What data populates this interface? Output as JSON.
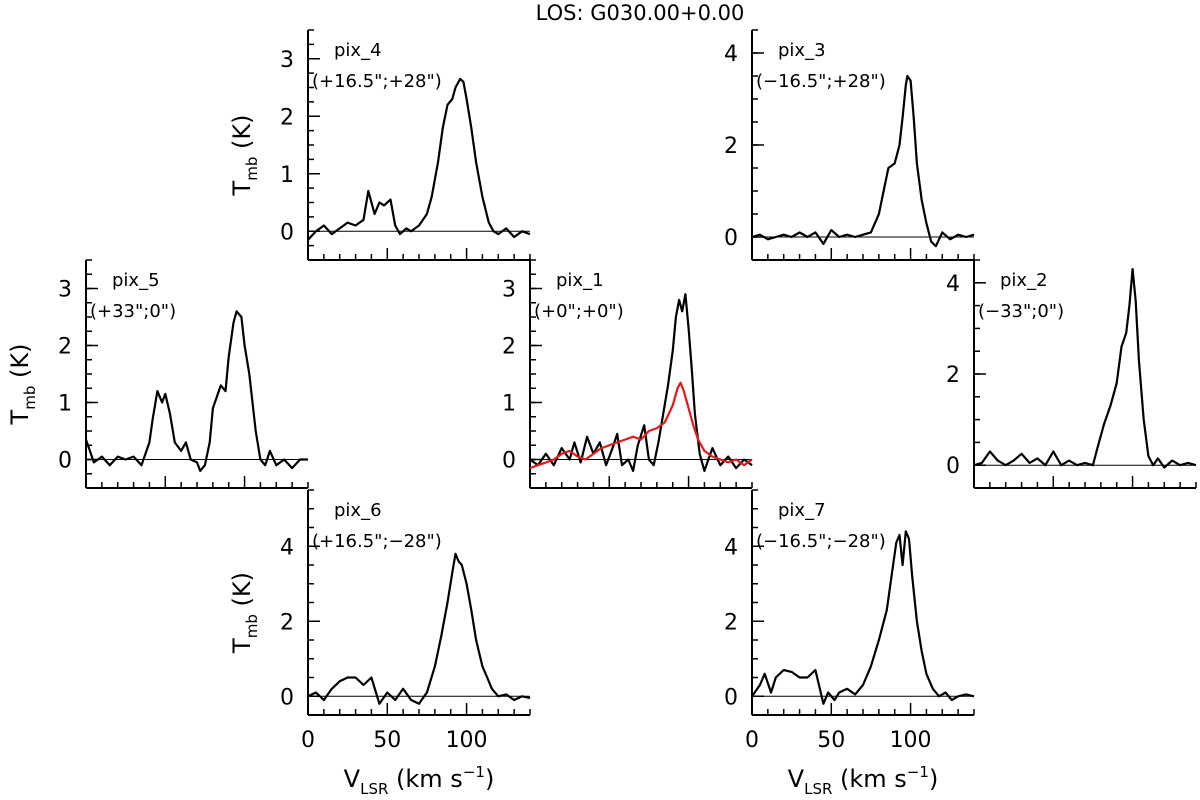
{
  "figure_title": "LOS: G030.00+0.00",
  "axis_text": {
    "x_label_main": "V",
    "x_label_sub": "LSR",
    "x_label_unit": " (km s",
    "x_label_exp": "−1",
    "x_label_close": ")",
    "y_label_main": "T",
    "y_label_sub": "mb",
    "y_label_unit": " (K)"
  },
  "chart_data": [
    {
      "type": "line",
      "panel": "pix_4",
      "label": "pix_4",
      "offset": "(+16.5\";+28\")",
      "xlim": [
        0,
        140
      ],
      "ylim": [
        -0.5,
        3.5
      ],
      "yticks": [
        0,
        1,
        2,
        3
      ],
      "xticks": [
        0,
        50,
        100
      ],
      "show_xticklabels": false,
      "show_ylabel": true,
      "show_xlabel": false,
      "series": [
        {
          "color": "#000000",
          "x": [
            0,
            5,
            10,
            15,
            20,
            25,
            30,
            35,
            38,
            42,
            45,
            48,
            52,
            55,
            58,
            62,
            65,
            70,
            75,
            78,
            82,
            85,
            88,
            91,
            93,
            96,
            98,
            100,
            103,
            106,
            110,
            114,
            117,
            120,
            125,
            130,
            135,
            140
          ],
          "y": [
            -0.15,
            0.0,
            0.1,
            -0.05,
            0.05,
            0.15,
            0.1,
            0.2,
            0.7,
            0.3,
            0.5,
            0.45,
            0.55,
            0.1,
            -0.05,
            0.05,
            0.0,
            0.1,
            0.3,
            0.6,
            1.2,
            1.8,
            2.2,
            2.3,
            2.5,
            2.65,
            2.6,
            2.3,
            1.8,
            1.2,
            0.6,
            0.15,
            0.0,
            -0.05,
            0.05,
            -0.1,
            0.0,
            -0.05
          ]
        }
      ]
    },
    {
      "type": "line",
      "panel": "pix_3",
      "label": "pix_3",
      "offset": "(−16.5\";+28\")",
      "xlim": [
        0,
        140
      ],
      "ylim": [
        -0.5,
        4.5
      ],
      "yticks": [
        0,
        2,
        4
      ],
      "xticks": [
        0,
        50,
        100
      ],
      "show_xticklabels": false,
      "show_ylabel": false,
      "show_xlabel": false,
      "series": [
        {
          "color": "#000000",
          "x": [
            0,
            5,
            10,
            15,
            20,
            25,
            30,
            35,
            40,
            45,
            50,
            55,
            60,
            65,
            70,
            75,
            80,
            83,
            86,
            90,
            93,
            95,
            97,
            98,
            100,
            102,
            104,
            107,
            110,
            113,
            116,
            120,
            125,
            130,
            135,
            140
          ],
          "y": [
            0.0,
            0.05,
            -0.05,
            0.0,
            0.05,
            0.0,
            0.1,
            0.0,
            0.1,
            -0.15,
            0.15,
            0.0,
            0.05,
            0.0,
            0.05,
            0.1,
            0.5,
            1.0,
            1.5,
            1.6,
            2.0,
            2.6,
            3.3,
            3.5,
            3.4,
            2.6,
            1.6,
            0.8,
            0.3,
            -0.1,
            -0.2,
            0.1,
            -0.05,
            0.05,
            0.0,
            0.05
          ]
        }
      ]
    },
    {
      "type": "line",
      "panel": "pix_5",
      "label": "pix_5",
      "offset": "(+33\";0\")",
      "xlim": [
        0,
        140
      ],
      "ylim": [
        -0.5,
        3.5
      ],
      "yticks": [
        0,
        1,
        2,
        3
      ],
      "xticks": [
        0,
        50,
        100
      ],
      "show_xticklabels": false,
      "show_ylabel": true,
      "show_xlabel": false,
      "series": [
        {
          "color": "#000000",
          "x": [
            0,
            5,
            10,
            15,
            20,
            25,
            30,
            35,
            40,
            42,
            45,
            48,
            50,
            53,
            56,
            60,
            63,
            66,
            70,
            72,
            75,
            78,
            80,
            85,
            88,
            90,
            93,
            95,
            98,
            100,
            103,
            107,
            110,
            113,
            116,
            120,
            125,
            130,
            135,
            140
          ],
          "y": [
            0.35,
            -0.05,
            0.05,
            -0.1,
            0.05,
            0.0,
            0.05,
            -0.1,
            0.3,
            0.7,
            1.2,
            1.0,
            1.15,
            0.8,
            0.3,
            0.15,
            0.3,
            0.0,
            -0.05,
            -0.2,
            -0.1,
            0.3,
            0.9,
            1.3,
            1.2,
            1.8,
            2.4,
            2.6,
            2.5,
            2.0,
            1.5,
            0.5,
            0.0,
            -0.1,
            0.15,
            -0.1,
            0.0,
            -0.15,
            0.0,
            0.0
          ]
        }
      ]
    },
    {
      "type": "line",
      "panel": "pix_1",
      "label": "pix_1",
      "offset": "(+0\";+0\")",
      "xlim": [
        0,
        140
      ],
      "ylim": [
        -0.5,
        3.5
      ],
      "yticks": [
        0,
        1,
        2,
        3
      ],
      "xticks": [
        0,
        50,
        100
      ],
      "show_xticklabels": false,
      "show_ylabel": false,
      "show_xlabel": false,
      "series": [
        {
          "color": "#000000",
          "x": [
            0,
            5,
            10,
            15,
            20,
            25,
            28,
            32,
            36,
            40,
            44,
            48,
            52,
            55,
            58,
            62,
            65,
            68,
            72,
            75,
            78,
            81,
            84,
            87,
            90,
            92,
            94,
            96,
            98,
            100,
            102,
            104,
            107,
            110,
            115,
            120,
            125,
            130,
            135,
            140
          ],
          "y": [
            0.0,
            -0.1,
            0.1,
            -0.1,
            0.2,
            0.0,
            0.3,
            -0.05,
            0.4,
            0.1,
            0.3,
            -0.1,
            0.2,
            0.45,
            -0.1,
            0.0,
            -0.2,
            0.25,
            0.6,
            0.0,
            -0.1,
            0.3,
            0.8,
            1.3,
            1.9,
            2.5,
            2.8,
            2.6,
            2.9,
            2.3,
            1.6,
            0.8,
            0.1,
            -0.2,
            0.2,
            -0.1,
            0.05,
            -0.15,
            0.0,
            -0.1
          ]
        },
        {
          "color": "#e31a1c",
          "x": [
            0,
            5,
            10,
            15,
            20,
            25,
            30,
            35,
            40,
            45,
            50,
            55,
            60,
            65,
            70,
            75,
            80,
            85,
            90,
            93,
            95,
            97,
            100,
            103,
            106,
            110,
            115,
            120,
            125,
            130,
            135,
            140
          ],
          "y": [
            -0.15,
            -0.1,
            -0.05,
            0.0,
            0.1,
            0.15,
            0.05,
            0.0,
            0.1,
            0.2,
            0.25,
            0.3,
            0.35,
            0.4,
            0.35,
            0.5,
            0.55,
            0.65,
            0.95,
            1.25,
            1.35,
            1.2,
            0.9,
            0.6,
            0.35,
            0.15,
            0.05,
            0.0,
            -0.05,
            0.0,
            -0.1,
            0.0
          ]
        }
      ]
    },
    {
      "type": "line",
      "panel": "pix_2",
      "label": "pix_2",
      "offset": "(−33\";0\")",
      "xlim": [
        0,
        140
      ],
      "ylim": [
        -0.5,
        4.5
      ],
      "yticks": [
        0,
        2,
        4
      ],
      "xticks": [
        0,
        50,
        100
      ],
      "show_xticklabels": false,
      "show_ylabel": false,
      "show_xlabel": false,
      "series": [
        {
          "color": "#000000",
          "x": [
            0,
            5,
            10,
            15,
            20,
            25,
            30,
            35,
            40,
            45,
            50,
            55,
            60,
            65,
            70,
            75,
            78,
            82,
            86,
            90,
            93,
            96,
            98,
            100,
            102,
            104,
            107,
            110,
            113,
            116,
            120,
            125,
            130,
            135,
            140
          ],
          "y": [
            0.0,
            0.05,
            0.3,
            0.1,
            0.0,
            0.1,
            0.25,
            0.05,
            0.15,
            0.0,
            0.3,
            0.0,
            0.1,
            0.0,
            0.05,
            0.0,
            0.4,
            0.9,
            1.3,
            1.8,
            2.6,
            2.9,
            3.5,
            4.3,
            3.6,
            2.3,
            1.0,
            0.2,
            0.0,
            0.15,
            -0.05,
            0.1,
            0.0,
            0.05,
            0.0
          ]
        }
      ]
    },
    {
      "type": "line",
      "panel": "pix_6",
      "label": "pix_6",
      "offset": "(+16.5\";−28\")",
      "xlim": [
        0,
        140
      ],
      "ylim": [
        -0.5,
        5.5
      ],
      "yticks": [
        0,
        2,
        4
      ],
      "xticks": [
        0,
        50,
        100
      ],
      "show_xticklabels": true,
      "show_ylabel": true,
      "show_xlabel": true,
      "series": [
        {
          "color": "#000000",
          "x": [
            0,
            5,
            10,
            15,
            20,
            25,
            30,
            35,
            40,
            45,
            50,
            55,
            60,
            65,
            70,
            75,
            80,
            84,
            88,
            91,
            93,
            95,
            97,
            100,
            103,
            106,
            110,
            113,
            116,
            120,
            125,
            130,
            135,
            140
          ],
          "y": [
            0.0,
            0.1,
            -0.1,
            0.2,
            0.4,
            0.5,
            0.5,
            0.3,
            0.5,
            -0.2,
            0.1,
            -0.1,
            0.2,
            -0.1,
            -0.2,
            0.1,
            0.8,
            1.6,
            2.5,
            3.3,
            3.8,
            3.6,
            3.5,
            3.0,
            2.3,
            1.5,
            0.8,
            0.5,
            0.2,
            0.0,
            0.05,
            -0.1,
            0.0,
            -0.05
          ]
        }
      ]
    },
    {
      "type": "line",
      "panel": "pix_7",
      "label": "pix_7",
      "offset": "(−16.5\";−28\")",
      "xlim": [
        0,
        140
      ],
      "ylim": [
        -0.5,
        5.5
      ],
      "yticks": [
        0,
        2,
        4
      ],
      "xticks": [
        0,
        50,
        100
      ],
      "show_xticklabels": true,
      "show_ylabel": false,
      "show_xlabel": true,
      "series": [
        {
          "color": "#000000",
          "x": [
            0,
            5,
            8,
            12,
            15,
            20,
            25,
            30,
            35,
            40,
            45,
            48,
            52,
            55,
            60,
            65,
            70,
            75,
            80,
            85,
            88,
            91,
            93,
            95,
            97,
            99,
            101,
            104,
            107,
            110,
            114,
            118,
            122,
            126,
            130,
            135,
            140
          ],
          "y": [
            0.0,
            0.3,
            0.6,
            0.1,
            0.5,
            0.7,
            0.65,
            0.5,
            0.5,
            0.7,
            -0.2,
            0.1,
            -0.1,
            0.1,
            0.2,
            0.05,
            0.3,
            0.8,
            1.5,
            2.3,
            3.2,
            4.1,
            4.3,
            3.5,
            4.4,
            4.2,
            3.2,
            2.0,
            1.2,
            0.6,
            0.2,
            0.0,
            0.1,
            -0.1,
            0.0,
            0.05,
            0.0
          ]
        }
      ]
    }
  ]
}
